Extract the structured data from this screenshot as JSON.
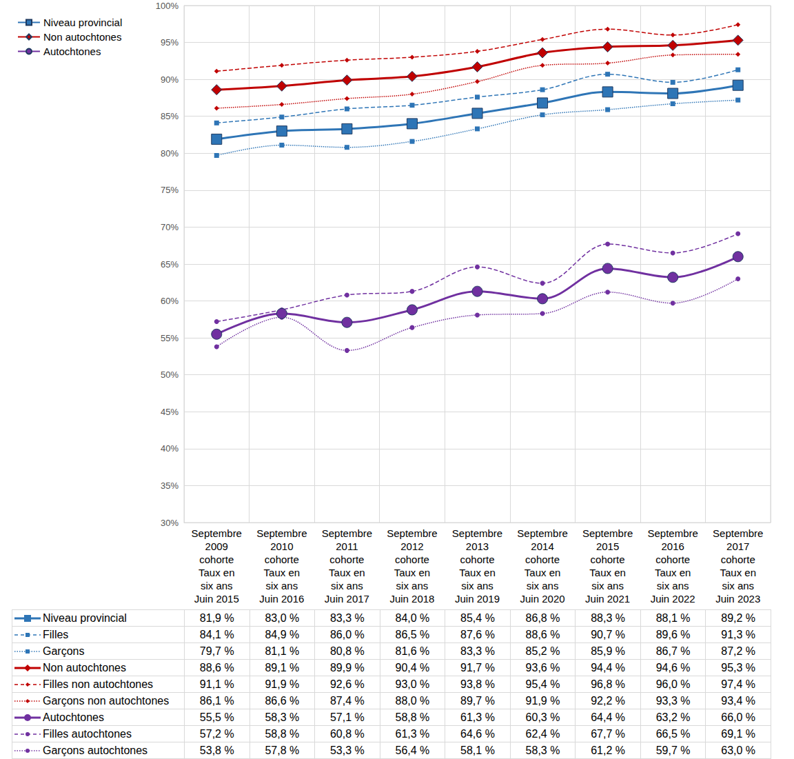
{
  "chart_data": {
    "type": "line",
    "categories": [
      "Septembre 2009 cohorte\nTaux en six ans Juin 2015",
      "Septembre 2010 cohorte\nTaux en six ans Juin 2016",
      "Septembre 2011 cohorte\nTaux en six ans Juin 2017",
      "Septembre 2012 cohorte\nTaux en six ans Juin 2018",
      "Septembre 2013 cohorte\nTaux en six ans Juin 2019",
      "Septembre 2014 cohorte\nTaux en six ans Juin 2020",
      "Septembre 2015 cohorte\nTaux en six ans Juin 2021",
      "Septembre 2016 cohorte\nTaux en six ans Juin 2022",
      "Septembre 2017 cohorte\nTaux en six ans Juin 2023"
    ],
    "ylim": [
      30,
      100
    ],
    "yticks": [
      {
        "value": 30,
        "label": "30%"
      },
      {
        "value": 35,
        "label": "35%"
      },
      {
        "value": 40,
        "label": "40%"
      },
      {
        "value": 45,
        "label": "45%"
      },
      {
        "value": 50,
        "label": "50%"
      },
      {
        "value": 55,
        "label": "55%"
      },
      {
        "value": 60,
        "label": "60%"
      },
      {
        "value": 65,
        "label": "65%"
      },
      {
        "value": 70,
        "label": "70%"
      },
      {
        "value": 75,
        "label": "75%"
      },
      {
        "value": 80,
        "label": "80%"
      },
      {
        "value": 85,
        "label": "85%"
      },
      {
        "value": 90,
        "label": "90%"
      },
      {
        "value": 95,
        "label": "95%"
      },
      {
        "value": 100,
        "label": "100%"
      }
    ],
    "grid": true,
    "legend": "top-left",
    "series": [
      {
        "name": "Niveau provincial",
        "color": "#2e75b6",
        "marker": "square",
        "line_style": "solid",
        "values": [
          81.9,
          83.0,
          83.3,
          84.0,
          85.4,
          86.8,
          88.3,
          88.1,
          89.2
        ],
        "value_labels": [
          "81,9 %",
          "83,0 %",
          "83,3 %",
          "84,0 %",
          "85,4 %",
          "86,8 %",
          "88,3 %",
          "88,1 %",
          "89,2 %"
        ]
      },
      {
        "name": "Filles",
        "color": "#2e75b6",
        "marker": "square",
        "line_style": "dashed",
        "values": [
          84.1,
          84.9,
          86.0,
          86.5,
          87.6,
          88.6,
          90.7,
          89.6,
          91.3
        ],
        "value_labels": [
          "84,1 %",
          "84,9 %",
          "86,0 %",
          "86,5 %",
          "87,6 %",
          "88,6 %",
          "90,7 %",
          "89,6 %",
          "91,3 %"
        ]
      },
      {
        "name": "Garçons",
        "color": "#2e75b6",
        "marker": "square",
        "line_style": "dotted",
        "values": [
          79.7,
          81.1,
          80.8,
          81.6,
          83.3,
          85.2,
          85.9,
          86.7,
          87.2
        ],
        "value_labels": [
          "79,7 %",
          "81,1 %",
          "80,8 %",
          "81,6 %",
          "83,3 %",
          "85,2 %",
          "85,9 %",
          "86,7 %",
          "87,2 %"
        ]
      },
      {
        "name": "Non autochtones",
        "color": "#c00000",
        "marker": "diamond",
        "line_style": "solid",
        "values": [
          88.6,
          89.1,
          89.9,
          90.4,
          91.7,
          93.6,
          94.4,
          94.6,
          95.3
        ],
        "value_labels": [
          "88,6 %",
          "89,1 %",
          "89,9 %",
          "90,4 %",
          "91,7 %",
          "93,6 %",
          "94,4 %",
          "94,6 %",
          "95,3 %"
        ]
      },
      {
        "name": "Filles non autochtones",
        "color": "#c00000",
        "marker": "diamond",
        "line_style": "dashed",
        "values": [
          91.1,
          91.9,
          92.6,
          93.0,
          93.8,
          95.4,
          96.8,
          96.0,
          97.4
        ],
        "value_labels": [
          "91,1 %",
          "91,9 %",
          "92,6 %",
          "93,0 %",
          "93,8 %",
          "95,4 %",
          "96,8 %",
          "96,0 %",
          "97,4 %"
        ]
      },
      {
        "name": "Garçons non autochtones",
        "color": "#c00000",
        "marker": "diamond",
        "line_style": "dotted",
        "values": [
          86.1,
          86.6,
          87.4,
          88.0,
          89.7,
          91.9,
          92.2,
          93.3,
          93.4
        ],
        "value_labels": [
          "86,1 %",
          "86,6 %",
          "87,4 %",
          "88,0 %",
          "89,7 %",
          "91,9 %",
          "92,2 %",
          "93,3 %",
          "93,4 %"
        ]
      },
      {
        "name": "Autochtones",
        "color": "#7030a0",
        "marker": "circle",
        "line_style": "solid",
        "values": [
          55.5,
          58.3,
          57.1,
          58.8,
          61.3,
          60.3,
          64.4,
          63.2,
          66.0
        ],
        "value_labels": [
          "55,5 %",
          "58,3 %",
          "57,1 %",
          "58,8 %",
          "61,3 %",
          "60,3 %",
          "64,4 %",
          "63,2 %",
          "66,0 %"
        ]
      },
      {
        "name": "Filles autochtones",
        "color": "#7030a0",
        "marker": "circle",
        "line_style": "dashed",
        "values": [
          57.2,
          58.8,
          60.8,
          61.3,
          64.6,
          62.4,
          67.7,
          66.5,
          69.1
        ],
        "value_labels": [
          "57,2 %",
          "58,8 %",
          "60,8 %",
          "61,3 %",
          "64,6 %",
          "62,4 %",
          "67,7 %",
          "66,5 %",
          "69,1 %"
        ]
      },
      {
        "name": "Garçons autochtones",
        "color": "#7030a0",
        "marker": "circle",
        "line_style": "dotted",
        "values": [
          53.8,
          57.8,
          53.3,
          56.4,
          58.1,
          58.3,
          61.2,
          59.7,
          63.0
        ],
        "value_labels": [
          "53,8 %",
          "57,8 %",
          "53,3 %",
          "56,4 %",
          "58,1 %",
          "58,3 %",
          "61,2 %",
          "59,7 %",
          "63,0 %"
        ]
      }
    ]
  }
}
